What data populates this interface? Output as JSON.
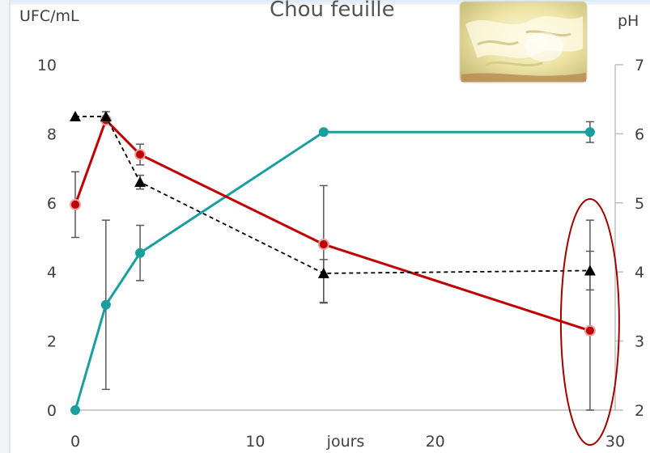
{
  "chart_data": {
    "type": "line",
    "title": "Chou feuille",
    "xlabel": "jours",
    "ylabel_left": "UFC/mL",
    "ylabel_right": "pH",
    "xlim": [
      0,
      30
    ],
    "ylim_left": [
      0,
      10
    ],
    "ylim_right": [
      2,
      7
    ],
    "x_ticks": [
      0,
      10,
      20,
      30
    ],
    "y_ticks_left": [
      0,
      2,
      4,
      6,
      8,
      10
    ],
    "y_ticks_right": [
      2,
      3,
      4,
      5,
      6,
      7
    ],
    "grid": false,
    "legend": "none",
    "series": [
      {
        "axis": "left",
        "color": "#1a9e9e",
        "style": "solid",
        "marker": "circle",
        "x": [
          0,
          1.7,
          3.6,
          13.8,
          28.6
        ],
        "y": [
          0,
          3.05,
          4.55,
          8.05,
          8.05
        ],
        "err_low": [
          0,
          2.45,
          0.8,
          0,
          0.3
        ],
        "err_high": [
          0,
          2.45,
          0.8,
          0,
          0.3
        ]
      },
      {
        "axis": "left",
        "color": "#c00000",
        "style": "solid",
        "marker": "circle",
        "x": [
          0,
          1.7,
          3.6,
          13.8,
          28.6
        ],
        "y": [
          5.95,
          8.4,
          7.4,
          4.8,
          2.3
        ],
        "err_low": [
          0.95,
          0,
          0.3,
          1.7,
          2.3
        ],
        "err_high": [
          0.95,
          0,
          0.3,
          1.7,
          3.2
        ]
      },
      {
        "axis": "right",
        "color": "#000000",
        "style": "dashed",
        "marker": "triangle",
        "x": [
          0,
          1.7,
          3.6,
          13.8,
          28.6
        ],
        "y": [
          6.25,
          6.25,
          5.3,
          3.98,
          4.02
        ],
        "err_low": [
          0,
          0.07,
          0.1,
          0.42,
          0.28
        ],
        "err_high": [
          0,
          0.07,
          0.1,
          0.2,
          0.28
        ]
      }
    ],
    "annotation": {
      "shape": "ellipse",
      "color": "#a00000",
      "around_x": 28.6
    }
  },
  "photo": {
    "subject": "cabbage-leaves-photo"
  }
}
